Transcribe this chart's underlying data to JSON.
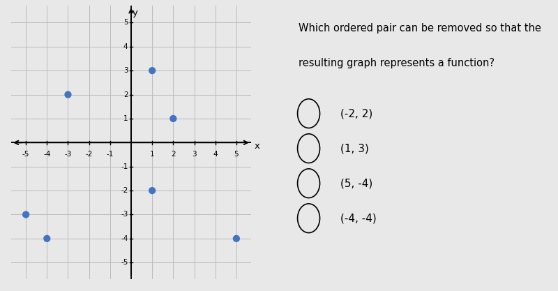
{
  "points": [
    [
      -3,
      2
    ],
    [
      1,
      3
    ],
    [
      2,
      1
    ],
    [
      1,
      -2
    ],
    [
      -5,
      -3
    ],
    [
      -4,
      -4
    ],
    [
      5,
      -4
    ]
  ],
  "point_color": "#4472C4",
  "point_size": 55,
  "xlim": [
    -5.7,
    5.7
  ],
  "ylim": [
    -5.7,
    5.7
  ],
  "xticks": [
    -5,
    -4,
    -3,
    -2,
    -1,
    1,
    2,
    3,
    4,
    5
  ],
  "yticks": [
    -5,
    -4,
    -3,
    -2,
    -1,
    1,
    2,
    3,
    4,
    5
  ],
  "grid_color": "#bbbbbb",
  "background_color": "#e8e8e8",
  "graph_bg": "#e0e0e0",
  "question_line1": "Which ordered pair can be removed so that the",
  "question_line2": "resulting graph represents a function?",
  "choices": [
    "(-2, 2)",
    "(1, 3)",
    "(5, -4)",
    "(-4, -4)"
  ],
  "font_size_question": 10.5,
  "font_size_choices": 11,
  "tick_fontsize": 7.5
}
